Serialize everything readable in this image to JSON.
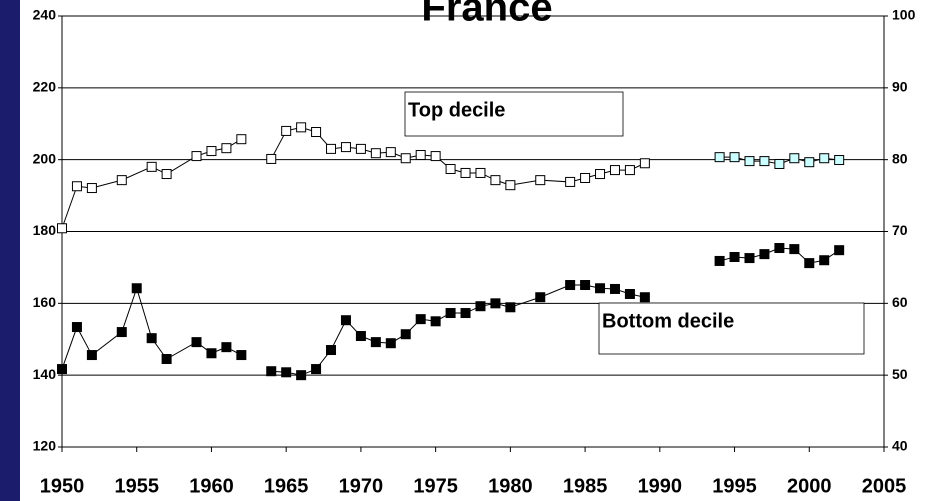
{
  "chart_data": {
    "type": "line",
    "title": "France",
    "annotations": [
      "Top decile",
      "Bottom decile"
    ],
    "xlim": [
      1950,
      2005
    ],
    "xticks": [
      1950,
      1955,
      1960,
      1965,
      1970,
      1975,
      1980,
      1985,
      1990,
      1995,
      2000,
      2005
    ],
    "ylim": [
      120,
      240
    ],
    "yticks": [
      120,
      140,
      160,
      180,
      200,
      220,
      240
    ],
    "y2lim": [
      40,
      100
    ],
    "y2ticks": [
      40,
      50,
      60,
      70,
      80,
      90,
      100
    ],
    "grid": true,
    "series": [
      {
        "color": "#ffffff",
        "x": [
          1950,
          1951,
          1952,
          1954,
          1956,
          1957,
          1959,
          1960,
          1961,
          1962,
          null,
          1964,
          1965,
          1966,
          1967,
          1968,
          1969,
          1970,
          1971,
          1972,
          1973,
          1974,
          1975,
          1976,
          1977,
          1978,
          1979,
          1980,
          1982,
          1984,
          1985,
          1986,
          1987,
          1988,
          1989
        ],
        "values": [
          180.9,
          192.6,
          192.1,
          194.3,
          198,
          196,
          201,
          202.4,
          203.2,
          205.7,
          null,
          200.2,
          208,
          209,
          207.7,
          203,
          203.5,
          203,
          201.8,
          202.1,
          200.4,
          201.3,
          201,
          197.4,
          196.3,
          196.3,
          194.3,
          192.9,
          194.3,
          193.8,
          194.9,
          196,
          197.1,
          197.1,
          199
        ]
      },
      {
        "color": "#ccffff",
        "x": [
          1994,
          1995,
          1996,
          1997,
          1998,
          1999,
          2000,
          2001,
          2002
        ],
        "values": [
          200.7,
          200.7,
          199.6,
          199.6,
          198.8,
          200.4,
          199.3,
          200.4,
          199.9
        ]
      },
      {
        "color": "#000000",
        "x": [
          1950,
          1951,
          1952,
          1954,
          1955,
          1956,
          1957,
          1959,
          1960,
          1961,
          1962,
          null,
          1964,
          1965,
          1966,
          1967,
          1968,
          1969,
          1970,
          1971,
          1972,
          1973,
          1974,
          1975,
          1976,
          1977,
          1978,
          1979,
          1980,
          1982,
          1984,
          1985,
          1986,
          1987,
          1988,
          1989,
          null,
          1994,
          1995,
          1996,
          1997,
          1998,
          1999,
          2000,
          2001,
          2002
        ],
        "values": [
          141.7,
          153.4,
          145.6,
          152,
          164.2,
          150.3,
          144.5,
          149.2,
          146.1,
          147.8,
          145.6,
          null,
          141.1,
          140.8,
          140,
          141.7,
          147,
          155.3,
          150.9,
          149.2,
          148.9,
          151.4,
          155.6,
          155,
          157.3,
          157.3,
          159.2,
          160,
          158.9,
          161.7,
          165.1,
          165.1,
          164.2,
          164,
          162.6,
          161.7,
          null,
          171.8,
          172.9,
          172.6,
          173.7,
          175.4,
          175.1,
          171.2,
          172,
          174.8
        ]
      }
    ]
  }
}
